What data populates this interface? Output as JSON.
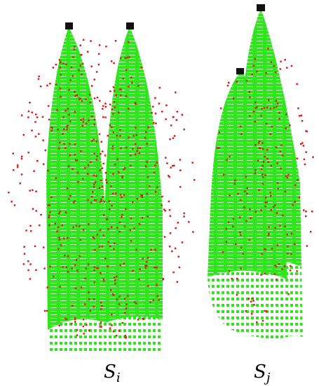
{
  "labels": [
    {
      "base": "S",
      "sub": "i"
    },
    {
      "base": "S",
      "sub": "j"
    }
  ]
}
